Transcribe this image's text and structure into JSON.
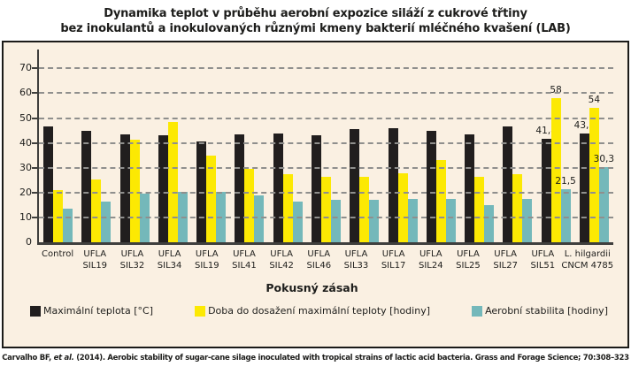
{
  "title": {
    "line1": "Dynamika teplot v průběhu aerobní expozice siláží z cukrové třtiny",
    "line2": "bez inokulantů a inokulovaných různými kmeny bakterií mléčného kvašení (LAB)"
  },
  "chart_data": {
    "type": "bar",
    "title": "Dynamika teplot v průběhu aerobní expozice siláží z cukrové třtiny bez inokulantů a inokulovaných různými kmeny bakterií mléčného kvašení (LAB)",
    "xlabel": "Pokusný zásah",
    "ylabel": "",
    "ylim": [
      0,
      70
    ],
    "yticks": [
      0,
      10,
      20,
      30,
      40,
      50,
      60,
      70
    ],
    "grid": "horizontal-dashed",
    "legend_position": "bottom",
    "categories": [
      "Control",
      "UFLA SIL19",
      "UFLA SIL32",
      "UFLA SIL34",
      "UFLA SIL19",
      "UFLA SIL41",
      "UFLA SIL42",
      "UFLA SIL46",
      "UFLA SIL33",
      "UFLA SIL17",
      "UFLA SIL24",
      "UFLA SIL25",
      "UFLA SIL27",
      "UFLA SIL51",
      "L. hilgardii CNCM 4785"
    ],
    "categories_lines": [
      [
        "Control",
        ""
      ],
      [
        "UFLA",
        "SIL19"
      ],
      [
        "UFLA",
        "SIL32"
      ],
      [
        "UFLA",
        "SIL34"
      ],
      [
        "UFLA",
        "SIL19"
      ],
      [
        "UFLA",
        "SIL41"
      ],
      [
        "UFLA",
        "SIL42"
      ],
      [
        "UFLA",
        "SIL46"
      ],
      [
        "UFLA",
        "SIL33"
      ],
      [
        "UFLA",
        "SIL17"
      ],
      [
        "UFLA",
        "SIL24"
      ],
      [
        "UFLA",
        "SIL25"
      ],
      [
        "UFLA",
        "SIL27"
      ],
      [
        "UFLA",
        "SIL51"
      ],
      [
        "L. hilgardii",
        "CNCM 4785"
      ]
    ],
    "series": [
      {
        "name": "Maximální teplota [°C]",
        "color": "#211e1e",
        "values": [
          46.5,
          45,
          43.5,
          43,
          40.5,
          43.5,
          44,
          43,
          45.5,
          46,
          45,
          43.5,
          46.5,
          41.8,
          43.8
        ],
        "value_labels": [
          "",
          "",
          "",
          "",
          "",
          "",
          "",
          "",
          "",
          "",
          "",
          "",
          "",
          "41,8",
          "43,8"
        ]
      },
      {
        "name": "Doba do dosažení maximální teploty [hodiny]",
        "color": "#fce903",
        "values": [
          21,
          25.5,
          41.5,
          48.5,
          35,
          29.5,
          27.5,
          26.5,
          26.5,
          28,
          33,
          26.5,
          27.5,
          58,
          54
        ],
        "value_labels": [
          "",
          "",
          "",
          "",
          "",
          "",
          "",
          "",
          "",
          "",
          "",
          "",
          "",
          "58",
          "54"
        ]
      },
      {
        "name": "Aerobní stabilita [hodiny]",
        "color": "#74b8ba",
        "values": [
          13.5,
          16.5,
          19.5,
          20.5,
          20.5,
          19,
          16.5,
          17,
          17,
          17.5,
          17.5,
          15,
          17.5,
          21.5,
          30.3
        ],
        "value_labels": [
          "",
          "",
          "",
          "",
          "",
          "",
          "",
          "",
          "",
          "",
          "",
          "",
          "",
          "21,5",
          "30,3"
        ]
      }
    ]
  },
  "footer": {
    "pre": "Carvalho BF, ",
    "italic": "et al.",
    "post": " (2014). Aerobic stability of sugar-cane silage inoculated with tropical strains of lactic acid bacteria. Grass and Forage Science; 70:308–323"
  },
  "colors": {
    "page_background": "#ffffff",
    "panel_background": "#faf0e2",
    "panel_border": "#1b1b19",
    "gridline": "#8f8f8d",
    "axis": "#3f3f3d",
    "bar_black": "#211e1e",
    "bar_yellow": "#fce903",
    "bar_teal": "#74b8ba",
    "text": "#1d1d1b"
  }
}
